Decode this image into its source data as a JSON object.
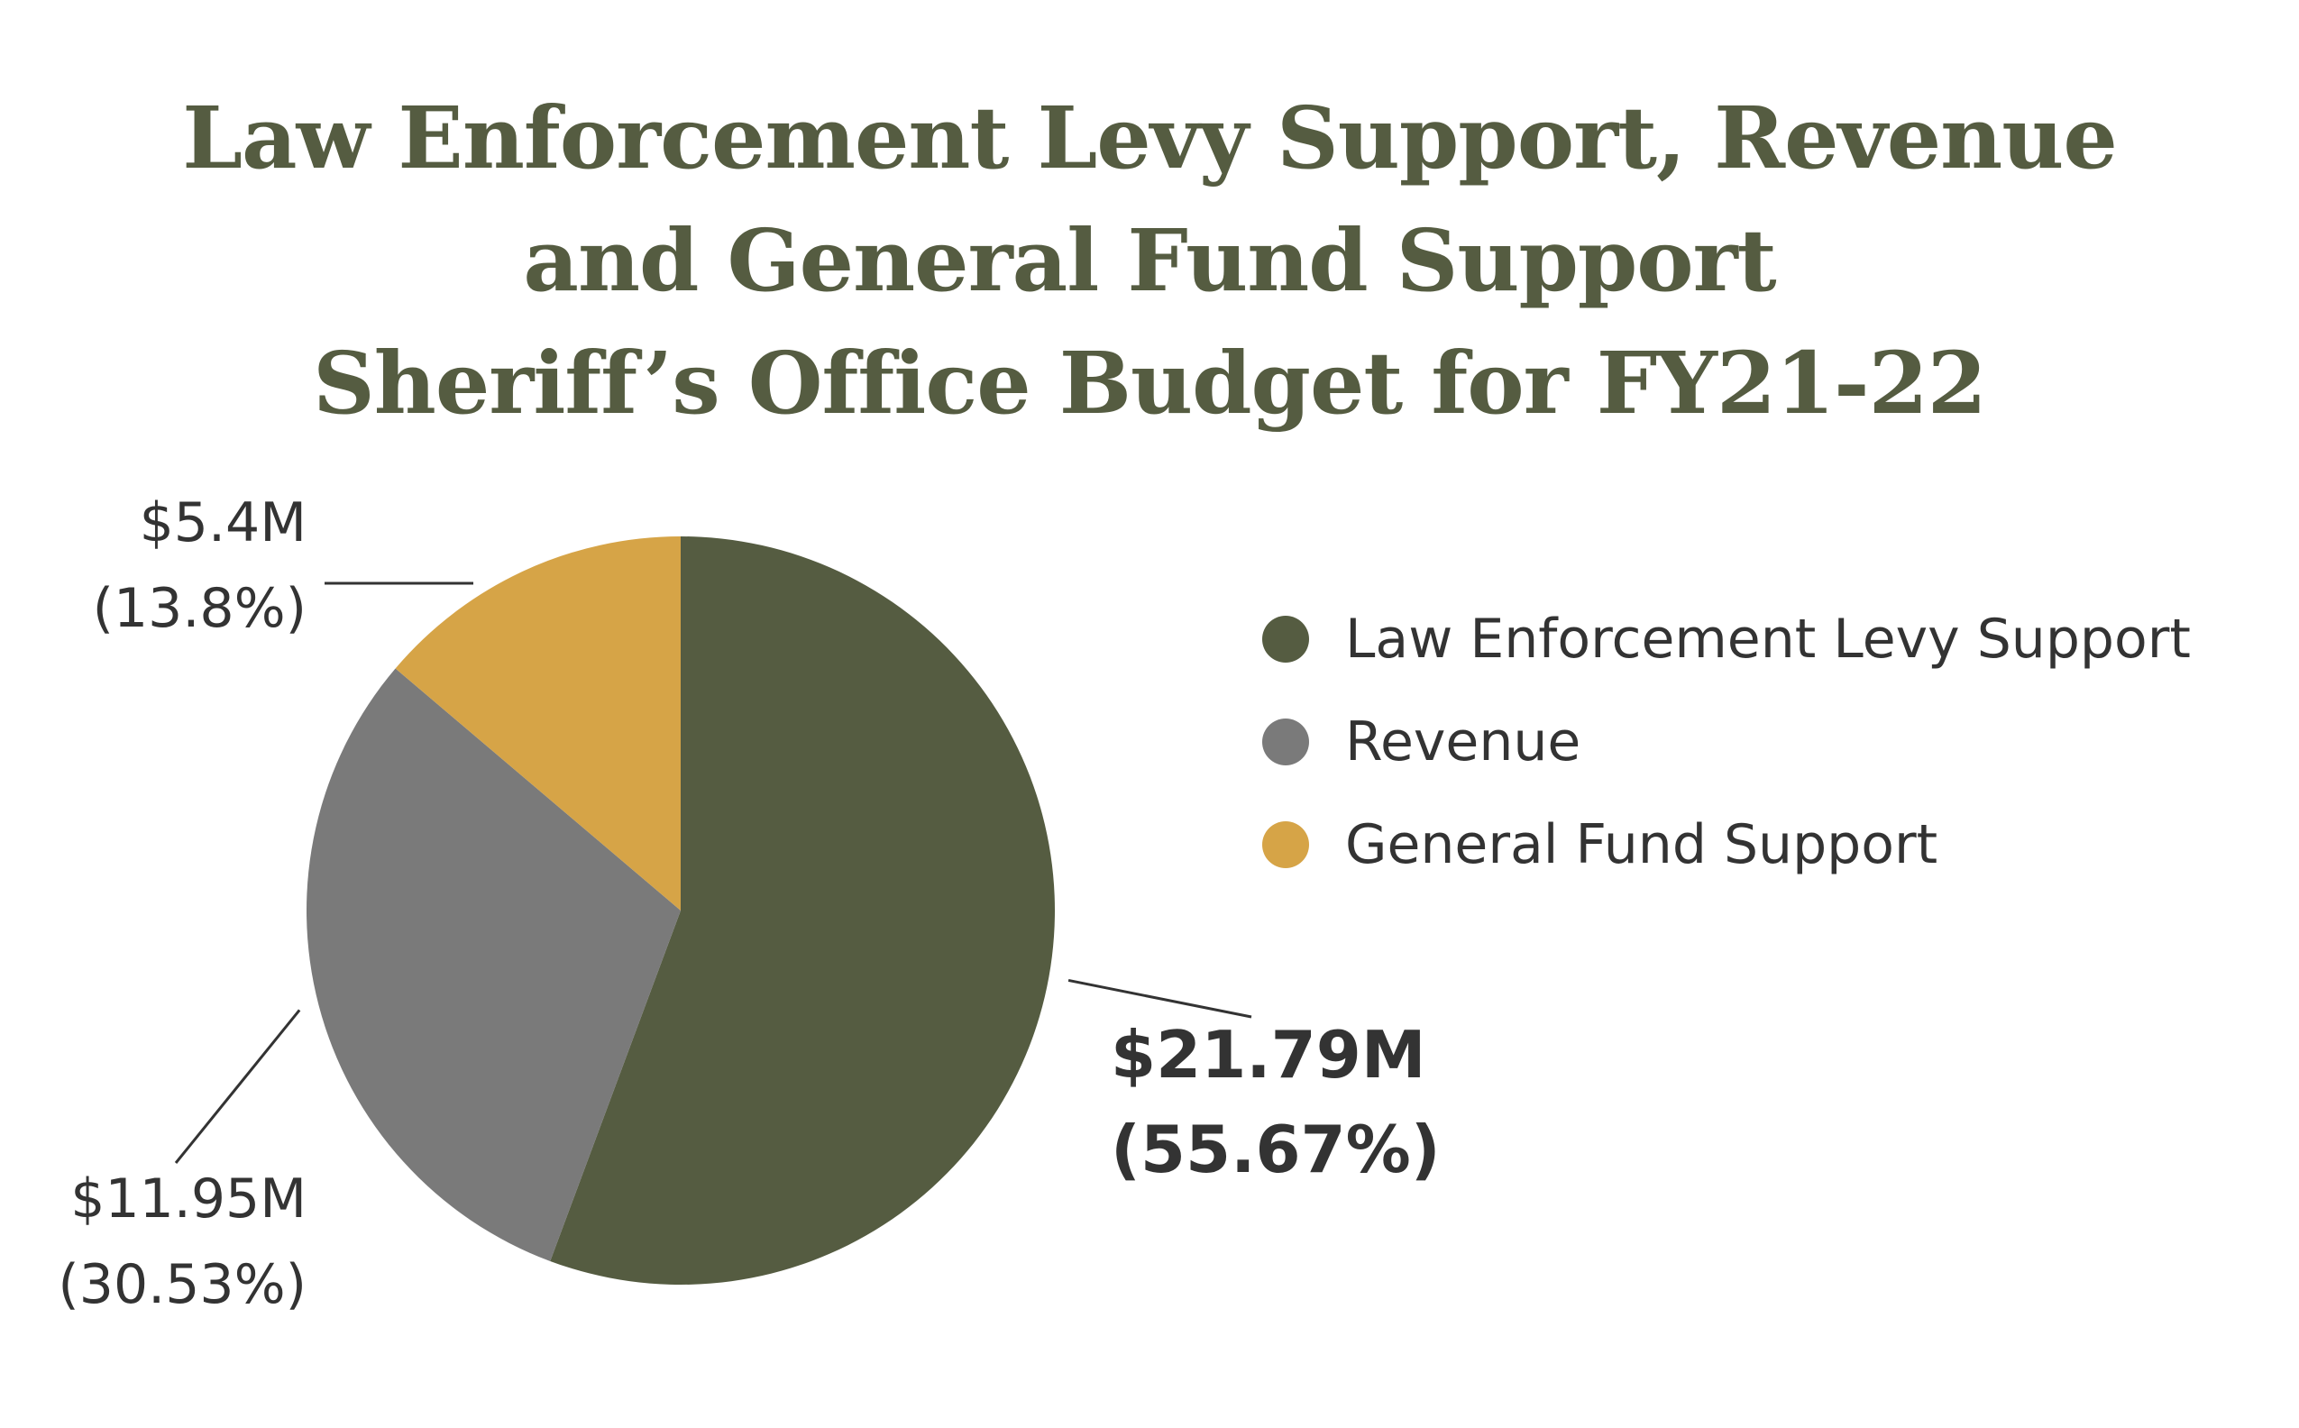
{
  "chart_data": {
    "type": "pie",
    "title_lines": [
      "Law Enforcement Levy Support, Revenue",
      "and General Fund Support",
      "Sheriff’s Office Budget for FY21-22"
    ],
    "slices": [
      {
        "name": "Law Enforcement Levy Support",
        "value_label": "$21.79M",
        "percent_label": "(55.67%)",
        "percent": 55.67,
        "color": "#555c41",
        "emphasis": true
      },
      {
        "name": "Revenue",
        "value_label": "$11.95M",
        "percent_label": "(30.53%)",
        "percent": 30.53,
        "color": "#7a7a7a",
        "emphasis": false
      },
      {
        "name": "General Fund Support",
        "value_label": "$5.4M",
        "percent_label": "(13.8%)",
        "percent": 13.8,
        "color": "#d6a447",
        "emphasis": false
      }
    ],
    "legend_position": "right"
  }
}
